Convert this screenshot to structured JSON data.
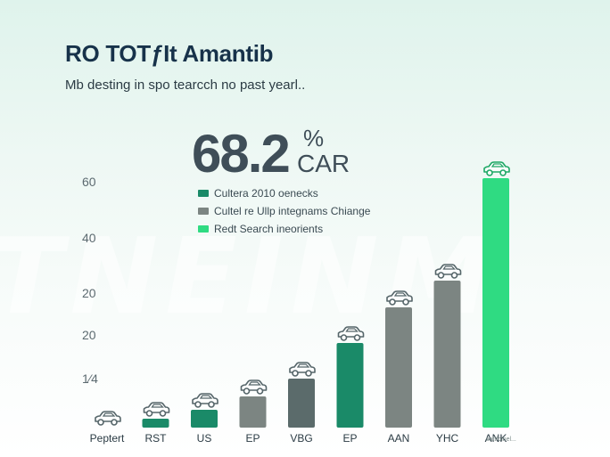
{
  "watermark": "TNEINM",
  "header": {
    "title": "RO TOTƒIt Amantib",
    "subtitle": "Mb desting in spo tearcch no past yearl.."
  },
  "headline": {
    "value": "68.2",
    "unit_pct": "%",
    "unit_car": "CAR"
  },
  "footnote": "sattfoinel...",
  "chart_data": {
    "type": "bar",
    "title": "RO TOTƒIt Amantib",
    "subtitle": "Mb desting in spo tearcch no past yearl..",
    "xlabel": "",
    "ylabel": "",
    "categories": [
      "Peptert",
      "RST",
      "US",
      "EP",
      "VBG",
      "EP",
      "AAN",
      "YHC",
      "ANK"
    ],
    "values": [
      0,
      2,
      4,
      7,
      11,
      19,
      27,
      33,
      56
    ],
    "bar_colors": [
      "#4e8f7e",
      "#1a8a68",
      "#1a8a68",
      "#7c8582",
      "#5b6b6b",
      "#1a8a68",
      "#7c8582",
      "#7c8582",
      "#2fdb82"
    ],
    "y_tick_labels": [
      "60",
      "40",
      "20",
      "20",
      "1⁄4"
    ],
    "legend": [
      {
        "label": "Cultera 2010 oenecks",
        "color": "#1a8a68"
      },
      {
        "label": "Cultel re Ullp integnams Chiange",
        "color": "#7c8582"
      },
      {
        "label": "Redt Search ineorients",
        "color": "#2fdb82"
      }
    ],
    "icon": "car-icon",
    "grid": false,
    "legend_position": "top-left"
  }
}
